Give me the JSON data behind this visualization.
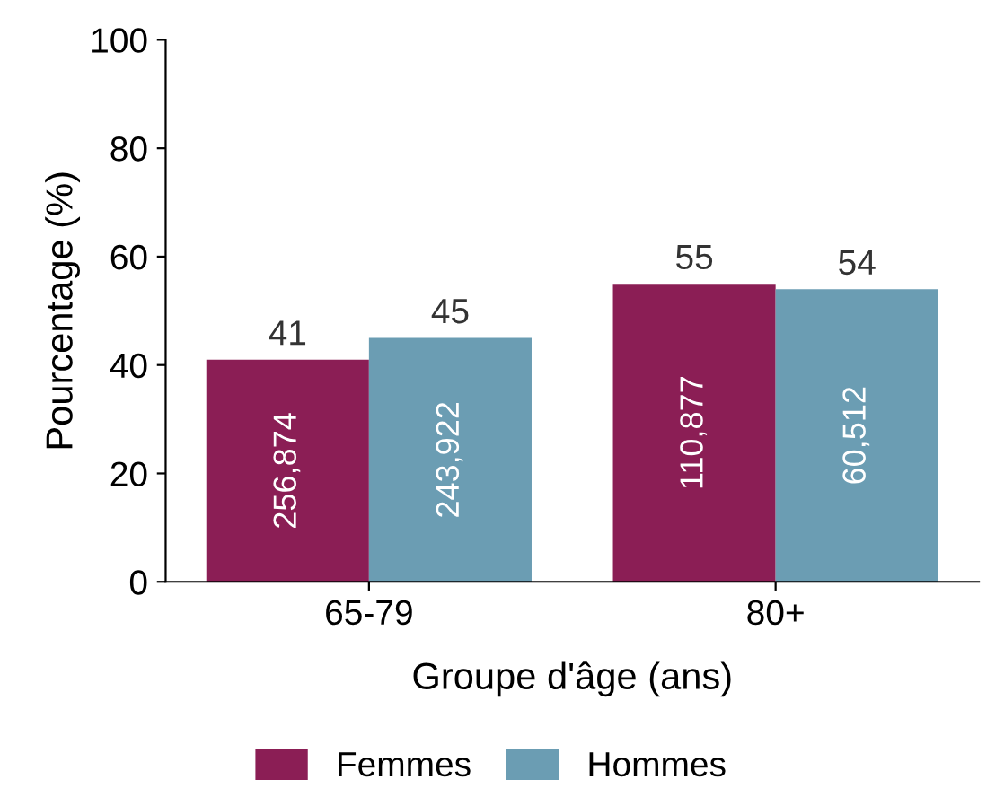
{
  "chart_data": {
    "type": "bar",
    "xlabel": "Groupe d'âge (ans)",
    "ylabel": "Pourcentage (%)",
    "categories": [
      "65-79",
      "80+"
    ],
    "series": [
      {
        "name": "Femmes",
        "color": "#8b1e55",
        "values": [
          41,
          55
        ]
      },
      {
        "name": "Hommes",
        "color": "#6b9db3",
        "values": [
          45,
          54
        ]
      }
    ],
    "ylim": [
      0,
      100
    ],
    "yticks": [
      0,
      20,
      40,
      60,
      80,
      100
    ],
    "data_labels": true,
    "grid": false,
    "legend": "bottom",
    "annotations": [
      "256,874",
      "243,922",
      "110,877",
      "60,512"
    ]
  }
}
